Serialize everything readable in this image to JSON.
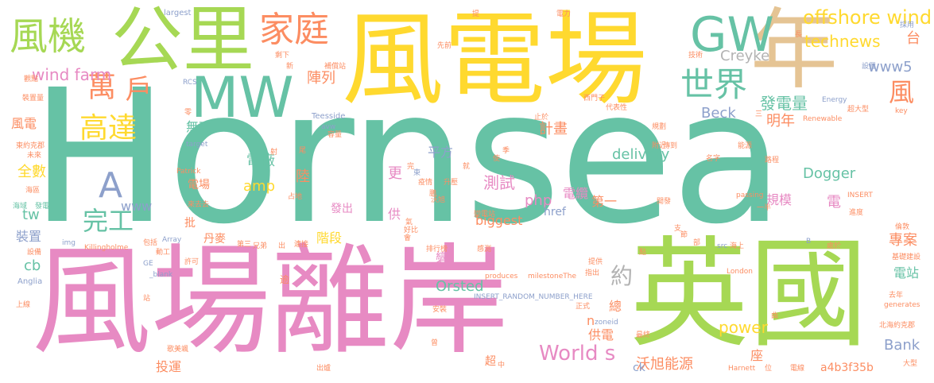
{
  "palette": {
    "teal": "#66c2a5",
    "yellow": "#ffd92f",
    "pink": "#e78ac3",
    "green": "#a6d854",
    "orange": "#fc8d62",
    "blue": "#8da0cb",
    "tan": "#e5c494",
    "gray": "#b3b3b3"
  },
  "words": {
    "hornsea": "Hornsea",
    "wind_farm_power": "風電場",
    "offshore_wind_farm": "風場離岸",
    "uk": "英國",
    "kilometer": "公里",
    "year": "年",
    "wind_turbine": "風機",
    "mw": "MW",
    "household": "家庭",
    "gw": "GW",
    "offshore_wind": "offshore wind",
    "ten_thousand": "萬",
    "households": "戶",
    "up_to": "高達",
    "world": "世界",
    "wind": "風",
    "technews": "technews",
    "platform": "台",
    "wind_farm": "wind farm",
    "array": "陣列",
    "creyke": "Creyke",
    "www5": "www5",
    "generation": "發電量",
    "next_year": "明年",
    "wind_power": "風電",
    "reactive": "無功",
    "beck": "Beck",
    "plan": "計畫",
    "a": "A",
    "completion": "完工",
    "www": "www",
    "tw": "tw",
    "all": "全數",
    "power_plant": "電廠",
    "land": "陸",
    "delivery": "delivery",
    "dogger": "Dogger",
    "square": "平方",
    "amp": "amp",
    "more": "更",
    "test": "測試",
    "php": "php",
    "cable": "電纜",
    "first": "第一",
    "scale": "規模",
    "power_field": "電場",
    "electric": "電",
    "send_out": "發出",
    "supply": "供",
    "href": "href",
    "biggest": "biggest",
    "install": "裝置",
    "batch": "批",
    "denmark": "丹麥",
    "stage": "階段",
    "project": "專案",
    "about": "約",
    "cb": "cb",
    "change": "變",
    "substation": "電站",
    "orsted": "Orsted",
    "power": "power",
    "worlds": "World s",
    "bank": "Bank",
    "supply_power": "供電",
    "orsted_cn": "沃旭能源",
    "total": "總",
    "n": "n",
    "ck": "ck",
    "investment": "投運",
    "super": "超",
    "seat": "座",
    "hash": "a4b3f35b",
    "largest": "largest",
    "mention": "提",
    "at_first": "先前",
    "electricity": "電力",
    "adopt": "採用",
    "long": "長",
    "remaining": "剩下",
    "new": "新",
    "subsystem": "補償站",
    "technology": "技術",
    "establish": "設置",
    "view": "觀點",
    "rcs": "RCS",
    "device": "裝置量",
    "west": "西門子",
    "representative": "代表性",
    "energy": "Energy",
    "stop": "止於",
    "only": "三",
    "teesside": "Teesside",
    "avw": "avw",
    "capacity": "容量",
    "renewable": "Renewable",
    "super_large": "超大型",
    "key": "key",
    "scale2": "規劃",
    "energy_src": "能源",
    "target": "target",
    "east": "東",
    "nearby": "附近",
    "eastern_yorkshire": "東約克郡",
    "future": "未來",
    "patrick": "Patrick",
    "famous": "名字",
    "road": "路程",
    "sea_area": "海區",
    "sea_area2": "海域",
    "power_gen": "發電",
    "come_go": "來去去",
    "occupy": "占地",
    "insert": "INSERT",
    "rise": "進度",
    "development": "開發",
    "half": "一半",
    "passing": "passing",
    "london": "倫敦",
    "equipment": "設備",
    "img": "img",
    "comprise": "包括",
    "array_en": "Array",
    "third": "第三",
    "brothers": "兄弟",
    "connect": "連接",
    "killingholme": "Killingholme",
    "ge": "GE",
    "blank": "_blank",
    "permit": "許可",
    "operation": "動工",
    "rank": "排行榜",
    "feel": "感測",
    "provide": "提供",
    "point_out": "指出",
    "src": "src",
    "sea": "海上",
    "location": "處於",
    "foundation": "基礎建設",
    "b": "B",
    "anglia": "Anglia",
    "reach": "逾",
    "produces": "produces",
    "milestone": "milestoneThe",
    "london_en": "London",
    "last_year": "去年",
    "generates": "generates",
    "insert_random": "INSERT_RANDOM_NUMBER_HERE",
    "formal": "正式",
    "zoneid": "zoneid",
    "north": "北海約克郡",
    "line": "上線",
    "safe": "安裝",
    "final": "最終",
    "wanted": "曾",
    "song": "歌美颯",
    "out": "出爐",
    "station": "站",
    "zhong": "中",
    "harnett": "Harnett",
    "position": "位",
    "cable2": "電線",
    "size": "大型",
    "pass": "傳到",
    "lift": "升壓",
    "peng": "鵬",
    "wei": "尾",
    "ling": "零",
    "bian": "變電站",
    "hao": "好比",
    "qi": "氣",
    "mo": "莫",
    "ju": "巨",
    "guan": "關",
    "shou": "收",
    "jie": "節",
    "wan": "完",
    "fu": "幅",
    "yi": "疫情",
    "qu": "曲",
    "zhi": "支",
    "lu": "沃旭",
    "chu": "出",
    "hui": "會",
    "ji": "季",
    "shi": "使",
    "bu": "部",
    "she": "射",
    "jiu": "就",
    "zhe": "者",
    "dian": "點",
    "zu": "組",
    "qian": "前",
    "kuang": "框",
    "he": "合",
    "tai": "太",
    "ren": "認"
  }
}
